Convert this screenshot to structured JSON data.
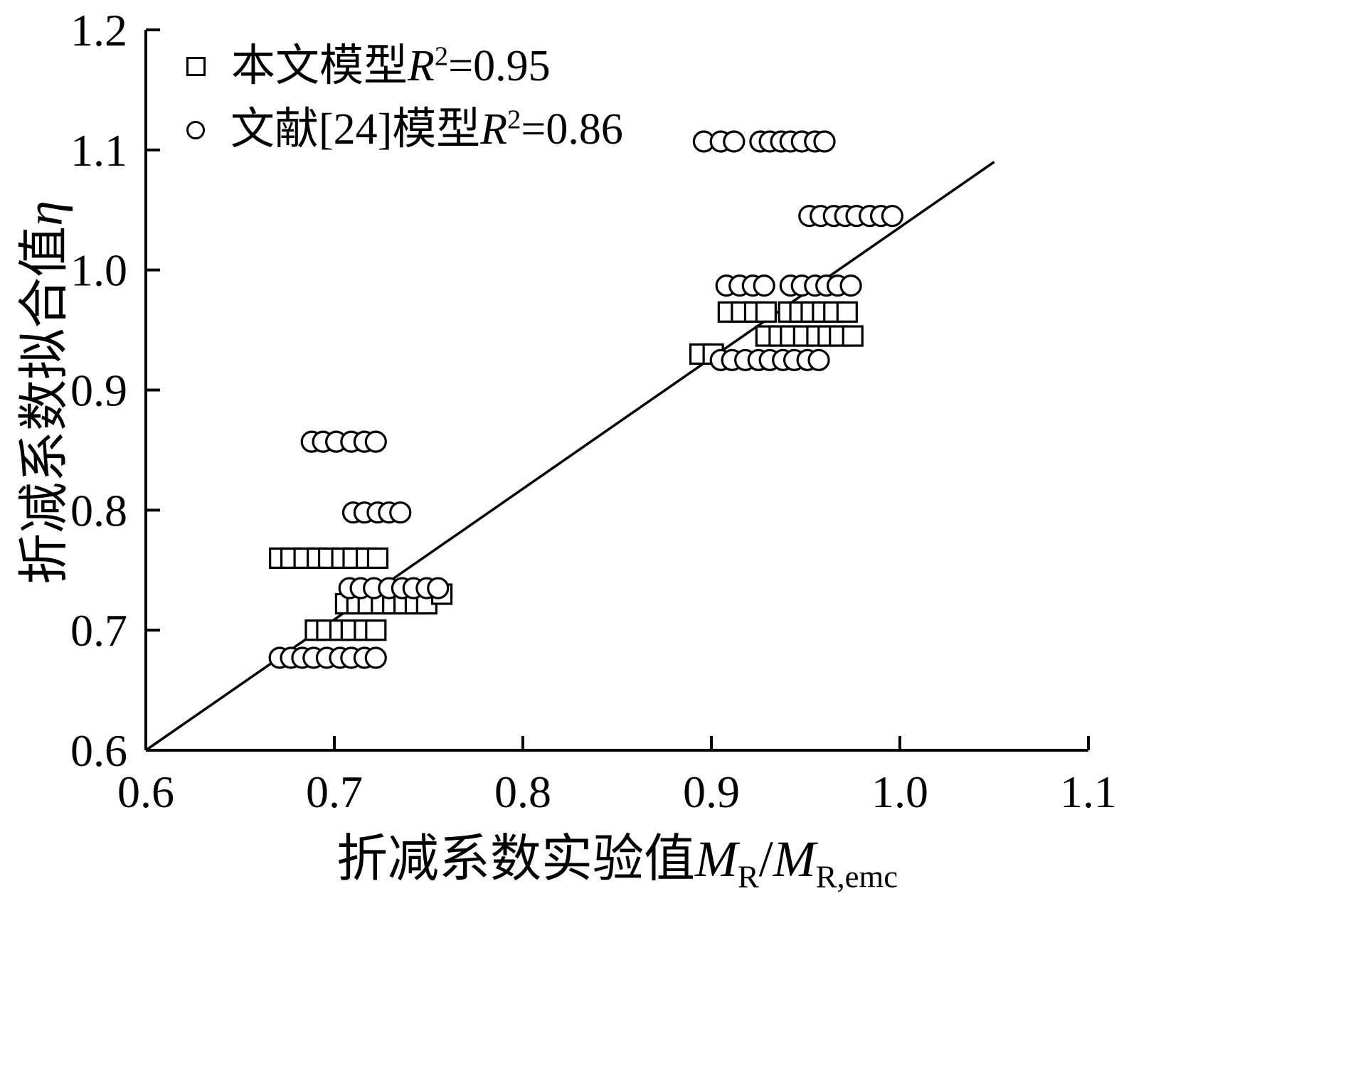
{
  "colors": {
    "foreground": "#000000",
    "background": "#ffffff"
  },
  "legend": {
    "items": [
      {
        "marker": "square",
        "prefix": "本文模型",
        "var": "R",
        "sup": "2",
        "rest": "=0.95"
      },
      {
        "marker": "circle",
        "prefix": "文献[24]模型",
        "var": "R",
        "sup": "2",
        "rest": "=0.86"
      }
    ]
  },
  "axes": {
    "xlabel": {
      "prefix": "折减系数实验值",
      "var1": "M",
      "sub1": "R",
      "sep": "/",
      "var2": "M",
      "sub2": "R,emc"
    },
    "ylabel": {
      "prefix": "折减系数拟合值",
      "var": "η"
    }
  },
  "chart_data": {
    "type": "scatter",
    "title": "",
    "xlabel": "折减系数实验值MR/MR,emc",
    "ylabel": "折减系数拟合值η",
    "xlim": [
      0.6,
      1.1
    ],
    "ylim": [
      0.6,
      1.2
    ],
    "xticks": [
      0.6,
      0.7,
      0.8,
      0.9,
      1.0,
      1.1
    ],
    "xtick_labels": [
      "0.6",
      "0.7",
      "0.8",
      "0.9",
      "1.0",
      "1.1"
    ],
    "yticks": [
      0.6,
      0.7,
      0.8,
      0.9,
      1.0,
      1.1,
      1.2
    ],
    "ytick_labels": [
      "0.6",
      "0.7",
      "0.8",
      "0.9",
      "1.0",
      "1.1",
      "1.2"
    ],
    "grid": false,
    "legend_position": "upper-left",
    "reference_line": {
      "name": "identity-line",
      "points": [
        [
          0.6,
          0.6
        ],
        [
          1.05,
          1.09
        ]
      ]
    },
    "series": [
      {
        "name": "本文模型R²=0.95",
        "marker": "square",
        "color": "#000000",
        "fill": "#ffffff",
        "points": [
          [
            0.909,
            0.965
          ],
          [
            0.916,
            0.965
          ],
          [
            0.923,
            0.965
          ],
          [
            0.929,
            0.965
          ],
          [
            0.941,
            0.965
          ],
          [
            0.947,
            0.965
          ],
          [
            0.953,
            0.965
          ],
          [
            0.959,
            0.965
          ],
          [
            0.965,
            0.965
          ],
          [
            0.972,
            0.965
          ],
          [
            0.929,
            0.945
          ],
          [
            0.936,
            0.945
          ],
          [
            0.942,
            0.945
          ],
          [
            0.949,
            0.945
          ],
          [
            0.956,
            0.945
          ],
          [
            0.962,
            0.945
          ],
          [
            0.968,
            0.945
          ],
          [
            0.975,
            0.945
          ],
          [
            0.894,
            0.93
          ],
          [
            0.901,
            0.93
          ],
          [
            0.671,
            0.76
          ],
          [
            0.677,
            0.76
          ],
          [
            0.684,
            0.76
          ],
          [
            0.691,
            0.76
          ],
          [
            0.697,
            0.76
          ],
          [
            0.704,
            0.76
          ],
          [
            0.71,
            0.76
          ],
          [
            0.717,
            0.76
          ],
          [
            0.723,
            0.76
          ],
          [
            0.706,
            0.722
          ],
          [
            0.712,
            0.722
          ],
          [
            0.718,
            0.722
          ],
          [
            0.725,
            0.722
          ],
          [
            0.731,
            0.722
          ],
          [
            0.737,
            0.722
          ],
          [
            0.743,
            0.722
          ],
          [
            0.749,
            0.722
          ],
          [
            0.757,
            0.73
          ],
          [
            0.69,
            0.7
          ],
          [
            0.696,
            0.7
          ],
          [
            0.703,
            0.7
          ],
          [
            0.709,
            0.7
          ],
          [
            0.716,
            0.7
          ],
          [
            0.722,
            0.7
          ]
        ]
      },
      {
        "name": "文献[24]模型R²=0.86",
        "marker": "circle",
        "color": "#000000",
        "fill": "#ffffff",
        "points": [
          [
            0.896,
            1.107
          ],
          [
            0.905,
            1.107
          ],
          [
            0.912,
            1.107
          ],
          [
            0.926,
            1.107
          ],
          [
            0.931,
            1.107
          ],
          [
            0.937,
            1.107
          ],
          [
            0.942,
            1.107
          ],
          [
            0.948,
            1.107
          ],
          [
            0.955,
            1.107
          ],
          [
            0.96,
            1.107
          ],
          [
            0.952,
            1.045
          ],
          [
            0.958,
            1.045
          ],
          [
            0.965,
            1.045
          ],
          [
            0.971,
            1.045
          ],
          [
            0.977,
            1.045
          ],
          [
            0.984,
            1.045
          ],
          [
            0.99,
            1.045
          ],
          [
            0.996,
            1.045
          ],
          [
            0.908,
            0.987
          ],
          [
            0.915,
            0.987
          ],
          [
            0.922,
            0.987
          ],
          [
            0.928,
            0.987
          ],
          [
            0.942,
            0.987
          ],
          [
            0.948,
            0.987
          ],
          [
            0.955,
            0.987
          ],
          [
            0.961,
            0.987
          ],
          [
            0.967,
            0.987
          ],
          [
            0.974,
            0.987
          ],
          [
            0.905,
            0.925
          ],
          [
            0.911,
            0.925
          ],
          [
            0.918,
            0.925
          ],
          [
            0.925,
            0.925
          ],
          [
            0.931,
            0.925
          ],
          [
            0.938,
            0.925
          ],
          [
            0.944,
            0.925
          ],
          [
            0.951,
            0.925
          ],
          [
            0.957,
            0.925
          ],
          [
            0.688,
            0.857
          ],
          [
            0.694,
            0.857
          ],
          [
            0.701,
            0.857
          ],
          [
            0.709,
            0.857
          ],
          [
            0.716,
            0.857
          ],
          [
            0.722,
            0.857
          ],
          [
            0.71,
            0.798
          ],
          [
            0.716,
            0.798
          ],
          [
            0.723,
            0.798
          ],
          [
            0.729,
            0.798
          ],
          [
            0.735,
            0.798
          ],
          [
            0.708,
            0.735
          ],
          [
            0.714,
            0.735
          ],
          [
            0.721,
            0.735
          ],
          [
            0.729,
            0.735
          ],
          [
            0.736,
            0.735
          ],
          [
            0.742,
            0.735
          ],
          [
            0.749,
            0.735
          ],
          [
            0.755,
            0.735
          ],
          [
            0.671,
            0.677
          ],
          [
            0.677,
            0.677
          ],
          [
            0.683,
            0.677
          ],
          [
            0.689,
            0.677
          ],
          [
            0.696,
            0.677
          ],
          [
            0.703,
            0.677
          ],
          [
            0.709,
            0.677
          ],
          [
            0.716,
            0.677
          ],
          [
            0.722,
            0.677
          ]
        ]
      }
    ]
  }
}
